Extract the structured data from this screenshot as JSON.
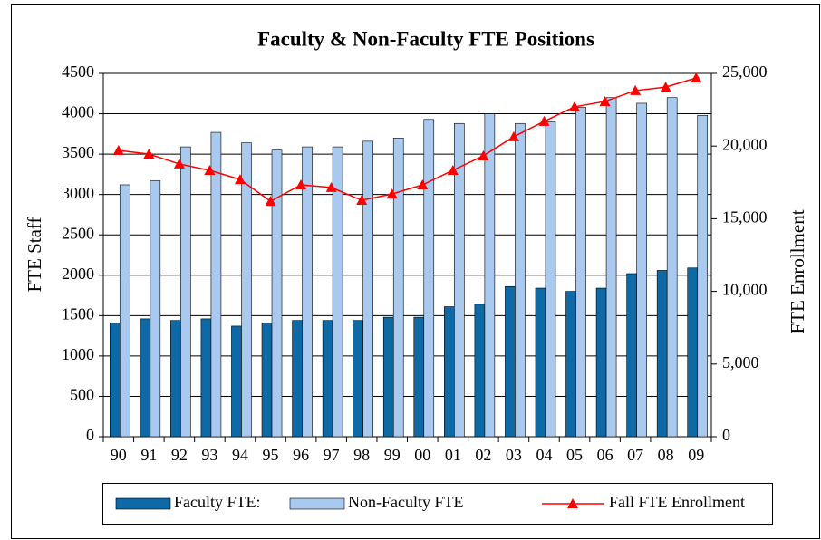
{
  "chart_data": {
    "type": "bar-line",
    "title": "Faculty & Non-Faculty FTE Positions",
    "y_label": "FTE Staff",
    "y2_label": "FTE Enrollment",
    "categories": [
      "90",
      "91",
      "92",
      "93",
      "94",
      "95",
      "96",
      "97",
      "98",
      "99",
      "00",
      "01",
      "02",
      "03",
      "04",
      "05",
      "06",
      "07",
      "08",
      "09"
    ],
    "series": [
      {
        "name": "Faculty FTE:",
        "type": "bar",
        "color": "#0e6aa6",
        "values": [
          1410,
          1460,
          1440,
          1460,
          1370,
          1410,
          1440,
          1440,
          1440,
          1480,
          1480,
          1610,
          1640,
          1860,
          1840,
          1800,
          1840,
          2020,
          2060,
          2090
        ]
      },
      {
        "name": "Non-Faculty FTE",
        "type": "bar",
        "color": "#a9c9ee",
        "values": [
          3120,
          3170,
          3590,
          3770,
          3640,
          3550,
          3590,
          3590,
          3660,
          3700,
          3930,
          3880,
          4000,
          3880,
          3900,
          4080,
          4200,
          4130,
          4200,
          3980
        ]
      },
      {
        "name": "Fall FTE Enrollment",
        "type": "line",
        "axis": "y2",
        "color": "#ff0000",
        "values": [
          19700,
          19450,
          18770,
          18330,
          17700,
          16200,
          17330,
          17150,
          16270,
          16700,
          17330,
          18330,
          19330,
          20640,
          21700,
          22700,
          23070,
          23820,
          24060,
          24690
        ]
      }
    ],
    "ylim": [
      0,
      4500
    ],
    "yticks": [
      0,
      500,
      1000,
      1500,
      2000,
      2500,
      3000,
      3500,
      4000,
      4500
    ],
    "y2lim": [
      0,
      25000
    ],
    "y2ticks": [
      0,
      {
        "value": 5000,
        "label": "5,000"
      },
      {
        "value": 10000,
        "label": "10,000"
      },
      {
        "value": 15000,
        "label": "15,000"
      },
      {
        "value": 20000,
        "label": "20,000"
      },
      {
        "value": 25000,
        "label": "25,000"
      }
    ],
    "grid": true,
    "legend": "bottom"
  }
}
